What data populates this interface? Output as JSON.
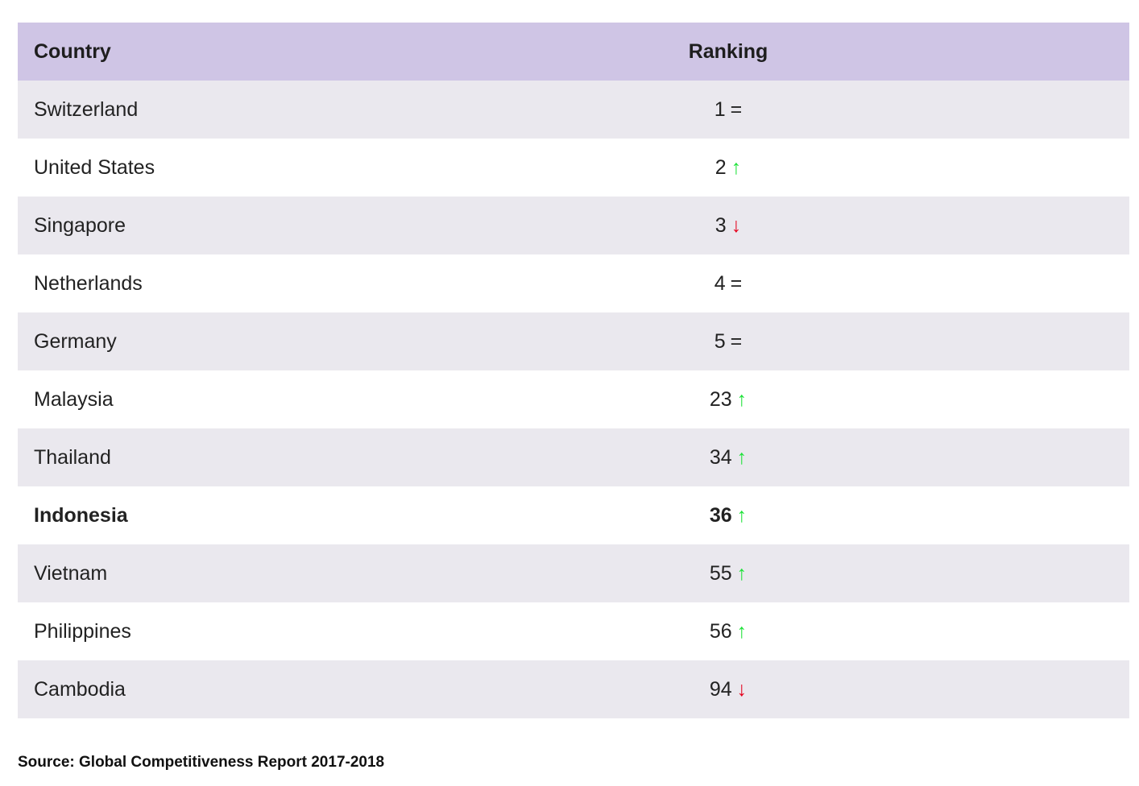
{
  "table": {
    "headers": {
      "country": "Country",
      "ranking": "Ranking"
    },
    "rows": [
      {
        "country": "Switzerland",
        "rank": "1",
        "trend": "=",
        "trend_type": "same"
      },
      {
        "country": "United States",
        "rank": "2",
        "trend": "↑",
        "trend_type": "up"
      },
      {
        "country": "Singapore",
        "rank": "3",
        "trend": "↓",
        "trend_type": "down"
      },
      {
        "country": "Netherlands",
        "rank": "4",
        "trend": "=",
        "trend_type": "same"
      },
      {
        "country": "Germany",
        "rank": "5",
        "trend": "=",
        "trend_type": "same"
      },
      {
        "country": "Malaysia",
        "rank": "23",
        "trend": "↑",
        "trend_type": "up"
      },
      {
        "country": "Thailand",
        "rank": "34",
        "trend": "↑",
        "trend_type": "up"
      },
      {
        "country": "Indonesia",
        "rank": "36",
        "trend": "↑",
        "trend_type": "up",
        "highlight": true
      },
      {
        "country": "Vietnam",
        "rank": "55",
        "trend": "↑",
        "trend_type": "up"
      },
      {
        "country": "Philippines",
        "rank": "56",
        "trend": "↑",
        "trend_type": "up"
      },
      {
        "country": "Cambodia",
        "rank": "94",
        "trend": "↓",
        "trend_type": "down"
      }
    ]
  },
  "source": "Source: Global Competitiveness Report 2017-2018",
  "colors": {
    "header_bg": "#cfc5e5",
    "row_shaded": "#eae8ee",
    "up_arrow": "#1fe23a",
    "down_arrow": "#e5001c"
  }
}
